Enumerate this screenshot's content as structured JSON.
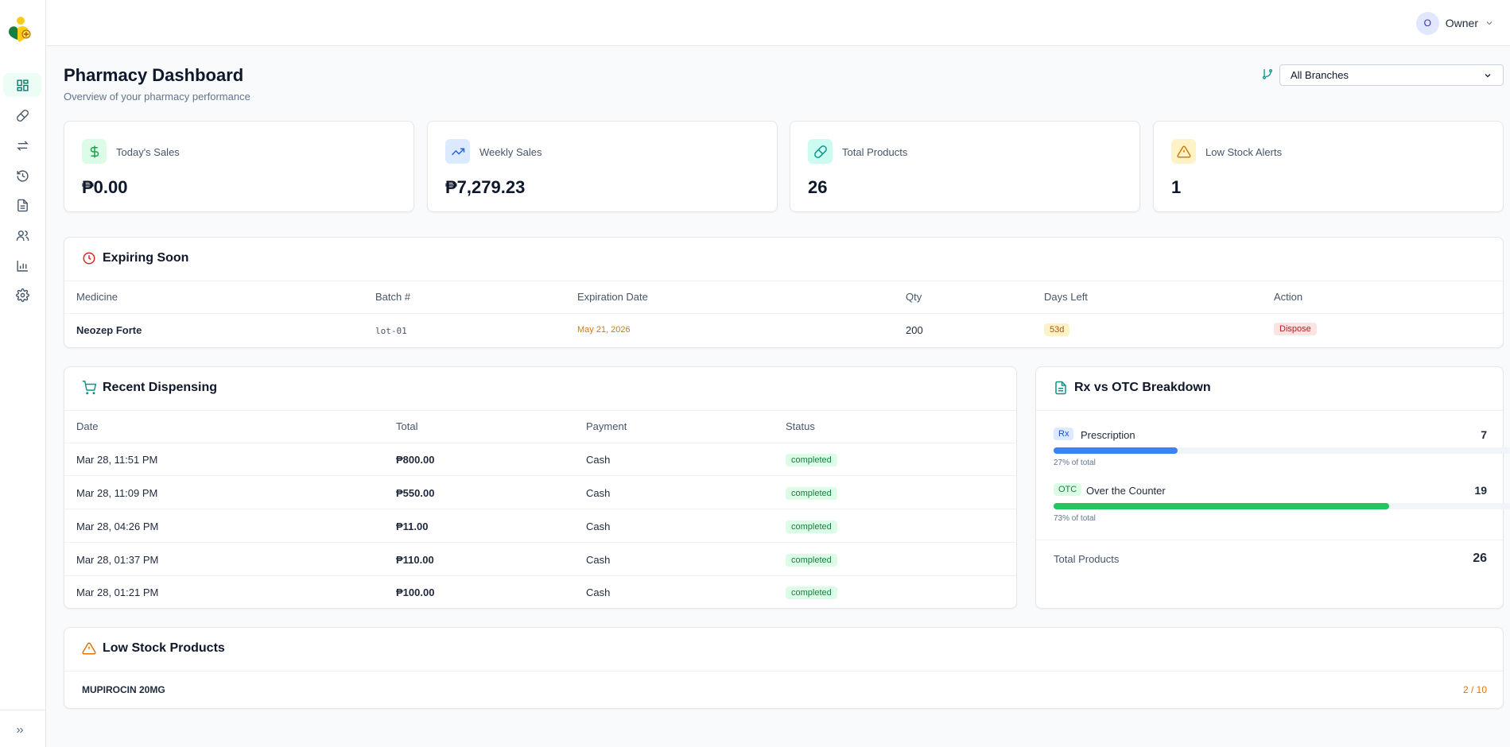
{
  "header": {
    "user_initial": "O",
    "user_name": "Owner"
  },
  "page": {
    "title": "Pharmacy Dashboard",
    "subtitle": "Overview of your pharmacy performance",
    "branch_select": "All Branches"
  },
  "stats": [
    {
      "label": "Today's Sales",
      "value": "₱0.00",
      "icon": "dollar-icon",
      "color": "#16a34a"
    },
    {
      "label": "Weekly Sales",
      "value": "₱7,279.23",
      "icon": "trending-up-icon",
      "color": "#2563eb"
    },
    {
      "label": "Total Products",
      "value": "26",
      "icon": "pill-icon",
      "color": "#0d9488"
    },
    {
      "label": "Low Stock Alerts",
      "value": "1",
      "icon": "warning-icon",
      "color": "#d97706"
    }
  ],
  "expiring": {
    "title": "Expiring Soon",
    "columns": [
      "Medicine",
      "Batch #",
      "Expiration Date",
      "Qty",
      "Days Left",
      "Action"
    ],
    "rows": [
      {
        "medicine": "Neozep Forte",
        "batch": "lot-01",
        "expiration": "May 21, 2026",
        "qty": "200",
        "days_left": "53d",
        "action": "Dispose"
      }
    ]
  },
  "dispensing": {
    "title": "Recent Dispensing",
    "columns": [
      "Date",
      "Total",
      "Payment",
      "Status"
    ],
    "rows": [
      {
        "date": "Mar 28, 11:51 PM",
        "total": "₱800.00",
        "payment": "Cash",
        "status": "completed"
      },
      {
        "date": "Mar 28, 11:09 PM",
        "total": "₱550.00",
        "payment": "Cash",
        "status": "completed"
      },
      {
        "date": "Mar 28, 04:26 PM",
        "total": "₱11.00",
        "payment": "Cash",
        "status": "completed"
      },
      {
        "date": "Mar 28, 01:37 PM",
        "total": "₱110.00",
        "payment": "Cash",
        "status": "completed"
      },
      {
        "date": "Mar 28, 01:21 PM",
        "total": "₱100.00",
        "payment": "Cash",
        "status": "completed"
      }
    ]
  },
  "breakdown": {
    "title": "Rx vs OTC Breakdown",
    "items": [
      {
        "tag": "Rx",
        "label": "Prescription",
        "count": "7",
        "percent_text": "27% of total",
        "fraction": 0.27,
        "color": "#3b82f6"
      },
      {
        "tag": "OTC",
        "label": "Over the Counter",
        "count": "19",
        "percent_text": "73% of total",
        "fraction": 0.73,
        "color": "#22c55e"
      }
    ],
    "total_label": "Total Products",
    "total_value": "26"
  },
  "low_stock": {
    "title": "Low Stock Products",
    "rows": [
      {
        "name": "MUPIROCIN 20MG",
        "stock": "2 / 10"
      }
    ]
  }
}
